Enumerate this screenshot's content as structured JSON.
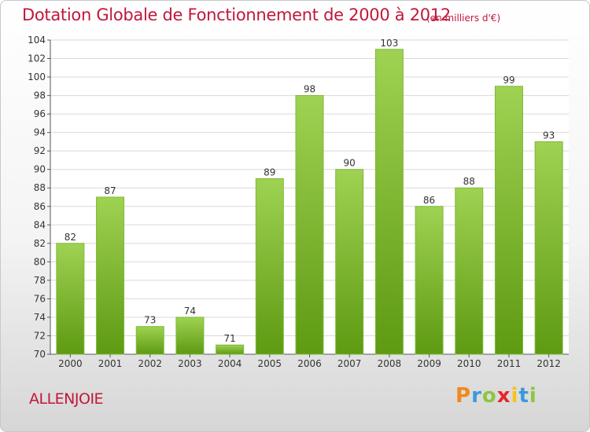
{
  "header": {
    "title": "Dotation Globale de Fonctionnement de 2000 à 2012",
    "unit": "(en milliers d'€)"
  },
  "footer": {
    "commune": "ALLENJOIE",
    "logo_text": "Proxiti",
    "logo_colors": [
      "#f08a1c",
      "#3a9ad9",
      "#8cc63f",
      "#e8262a",
      "#f6c21c",
      "#3a9ad9",
      "#8cc63f"
    ]
  },
  "colors": {
    "bar_top": "#9fd252",
    "bar_bottom": "#5e9a12",
    "title": "#c0183a",
    "grid": "#d9d9d9"
  },
  "chart_data": {
    "type": "bar",
    "categories": [
      "2000",
      "2001",
      "2002",
      "2003",
      "2004",
      "2005",
      "2006",
      "2007",
      "2008",
      "2009",
      "2010",
      "2011",
      "2012"
    ],
    "values": [
      82,
      87,
      73,
      74,
      71,
      89,
      98,
      90,
      103,
      86,
      88,
      99,
      93
    ],
    "ylim": [
      70,
      104
    ],
    "yticks": [
      70,
      72,
      74,
      76,
      78,
      80,
      82,
      84,
      86,
      88,
      90,
      92,
      94,
      96,
      98,
      100,
      102,
      104
    ],
    "grid": true
  }
}
